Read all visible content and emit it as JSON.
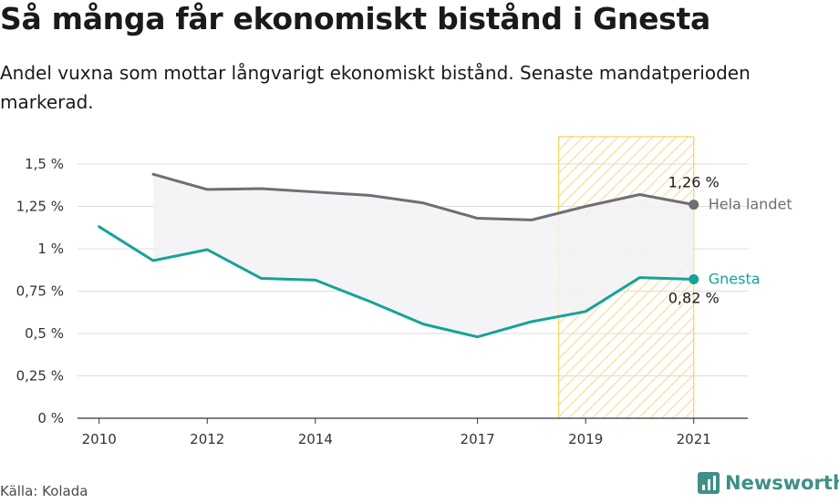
{
  "header": {
    "title": "Så många får ekonomiskt bistånd i Gnesta",
    "subtitle": "Andel vuxna som mottar långvarigt ekonomiskt bistånd. Senaste mandatperioden markerad."
  },
  "footer": {
    "source": "Källa: Kolada",
    "brand": "Newsworthy"
  },
  "colors": {
    "gnesta": "#16a396",
    "national": "#6e6e73",
    "highlight_stroke": "#f5c842",
    "highlight_hatch": "#f7dc8e",
    "gap_fill": "#f2f2f4",
    "grid": "#dcdcdc",
    "axis": "#333333"
  },
  "chart_data": {
    "type": "line",
    "x": [
      2010,
      2011,
      2012,
      2013,
      2014,
      2015,
      2016,
      2017,
      2018,
      2019,
      2020,
      2021
    ],
    "series": [
      {
        "name": "Hela landet",
        "key": "national",
        "values": [
          null,
          1.44,
          1.35,
          1.355,
          1.335,
          1.315,
          1.27,
          1.18,
          1.17,
          1.25,
          1.32,
          1.26
        ],
        "end_label": "1,26 %"
      },
      {
        "name": "Gnesta",
        "key": "gnesta",
        "values": [
          1.13,
          0.93,
          0.995,
          0.825,
          0.815,
          0.69,
          0.555,
          0.48,
          0.57,
          0.63,
          0.83,
          0.82
        ],
        "end_label": "0,82 %"
      }
    ],
    "x_ticks": [
      2010,
      2012,
      2014,
      2017,
      2019,
      2021
    ],
    "y_ticks": [
      {
        "value": 0,
        "label": "0 %"
      },
      {
        "value": 0.25,
        "label": "0,25 %"
      },
      {
        "value": 0.5,
        "label": "0,5 %"
      },
      {
        "value": 0.75,
        "label": "0,75 %"
      },
      {
        "value": 1,
        "label": "1 %"
      },
      {
        "value": 1.25,
        "label": "1,25 %"
      },
      {
        "value": 1.5,
        "label": "1,5 %"
      }
    ],
    "ylim": [
      0,
      1.5
    ],
    "highlight_period": [
      2018.5,
      2021
    ],
    "grid": true
  }
}
